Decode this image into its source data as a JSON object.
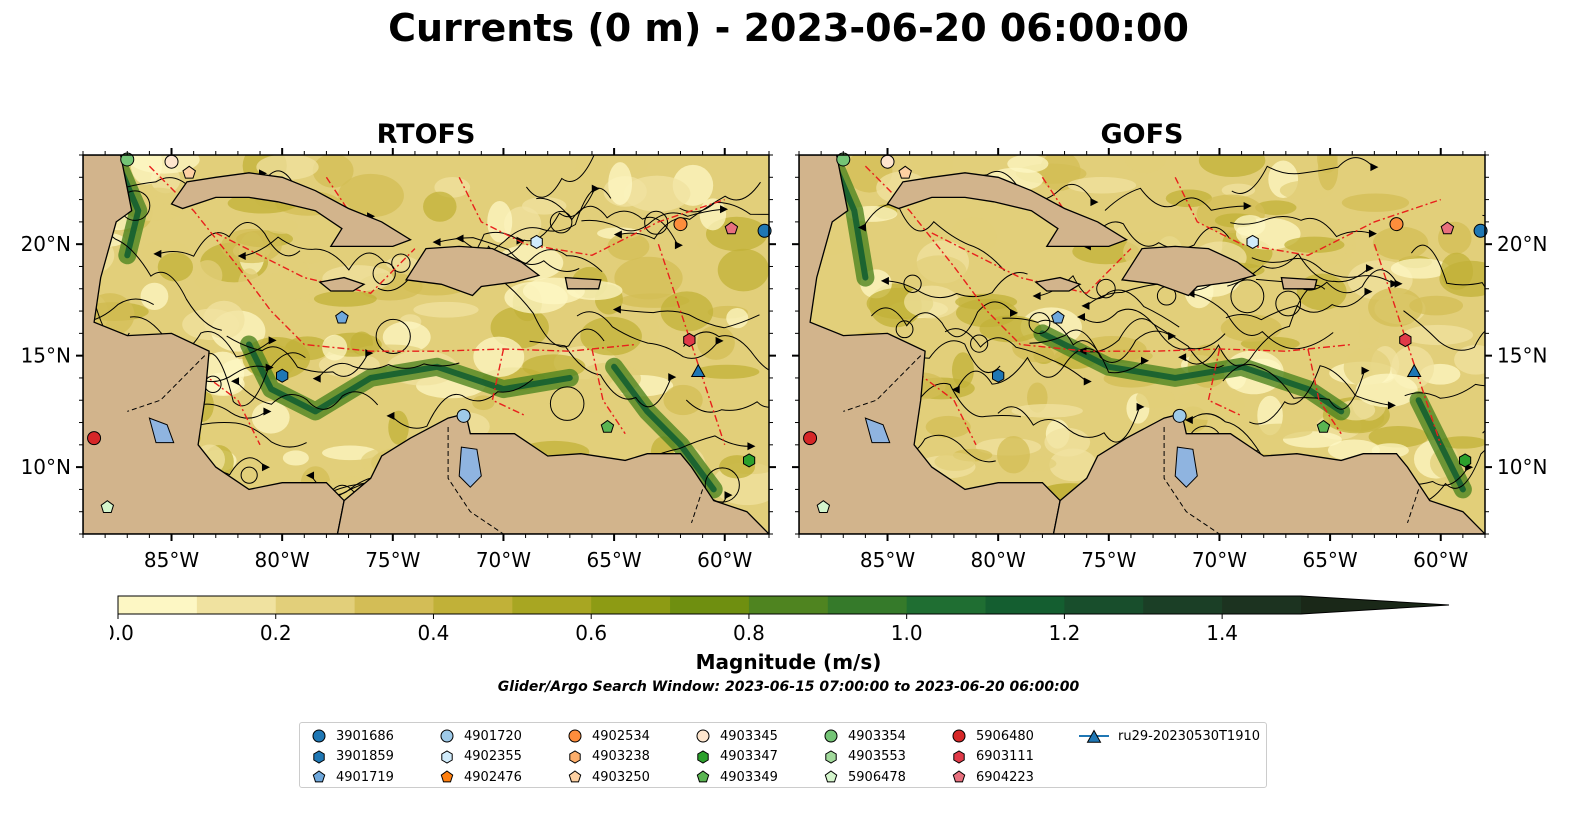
{
  "figure": {
    "title": "Currents (0 m) - 2023-06-20 06:00:00",
    "search_window": "Glider/Argo Search Window: 2023-06-15 07:00:00 to 2023-06-20 06:00:00"
  },
  "colors": {
    "land": "#d2b48c",
    "lakes": "#8fb4e0",
    "eez_lines": "#e8201c",
    "streamlines": "#000000"
  },
  "chart_data": [
    {
      "type": "heatmap",
      "title": "RTOFS",
      "variable": "surface current magnitude with streamlines",
      "xlim": [
        -89,
        -58
      ],
      "ylim": [
        7,
        24
      ],
      "x_ticks": [
        -85,
        -80,
        -75,
        -70,
        -65,
        -60
      ],
      "x_tick_labels": [
        "85°W",
        "80°W",
        "75°W",
        "70°W",
        "65°W",
        "60°W"
      ],
      "y_ticks": [
        10,
        15,
        20
      ],
      "y_tick_labels": [
        "10°N",
        "15°N",
        "20°N"
      ],
      "y_label_side": "left",
      "platforms": [
        {
          "id": "3901686",
          "lon": -58.2,
          "lat": 20.6
        },
        {
          "id": "4901720",
          "lon": -71.8,
          "lat": 12.3
        },
        {
          "id": "3901859",
          "lon": -80.0,
          "lat": 14.1
        },
        {
          "id": "4902355",
          "lon": -68.5,
          "lat": 20.1
        },
        {
          "id": "4902534",
          "lon": -62.0,
          "lat": 20.9
        },
        {
          "id": "4901719",
          "lon": -77.3,
          "lat": 16.7
        },
        {
          "id": "4903345",
          "lon": -85.0,
          "lat": 23.7
        },
        {
          "id": "4903250",
          "lon": -84.2,
          "lat": 23.2
        },
        {
          "id": "4903354",
          "lon": -87.0,
          "lat": 23.8
        },
        {
          "id": "4903349",
          "lon": -65.3,
          "lat": 11.8
        },
        {
          "id": "4903347",
          "lon": -58.9,
          "lat": 10.3
        },
        {
          "id": "5906478",
          "lon": -87.9,
          "lat": 8.2
        },
        {
          "id": "5906480",
          "lon": -88.5,
          "lat": 11.3
        },
        {
          "id": "6903111",
          "lon": -61.6,
          "lat": 15.7
        },
        {
          "id": "6904223",
          "lon": -59.7,
          "lat": 20.7
        },
        {
          "id": "ru29-20230530T1910",
          "lon": -61.2,
          "lat": 14.3
        }
      ]
    },
    {
      "type": "heatmap",
      "title": "GOFS",
      "variable": "surface current magnitude with streamlines",
      "xlim": [
        -89,
        -58
      ],
      "ylim": [
        7,
        24
      ],
      "x_ticks": [
        -85,
        -80,
        -75,
        -70,
        -65,
        -60
      ],
      "x_tick_labels": [
        "85°W",
        "80°W",
        "75°W",
        "70°W",
        "65°W",
        "60°W"
      ],
      "y_ticks": [
        10,
        15,
        20
      ],
      "y_tick_labels": [
        "10°N",
        "15°N",
        "20°N"
      ],
      "y_label_side": "right",
      "platforms": [
        {
          "id": "3901686",
          "lon": -58.2,
          "lat": 20.6
        },
        {
          "id": "4901720",
          "lon": -71.8,
          "lat": 12.3
        },
        {
          "id": "3901859",
          "lon": -80.0,
          "lat": 14.1
        },
        {
          "id": "4902355",
          "lon": -68.5,
          "lat": 20.1
        },
        {
          "id": "4902534",
          "lon": -62.0,
          "lat": 20.9
        },
        {
          "id": "4901719",
          "lon": -77.3,
          "lat": 16.7
        },
        {
          "id": "4903345",
          "lon": -85.0,
          "lat": 23.7
        },
        {
          "id": "4903250",
          "lon": -84.2,
          "lat": 23.2
        },
        {
          "id": "4903354",
          "lon": -87.0,
          "lat": 23.8
        },
        {
          "id": "4903349",
          "lon": -65.3,
          "lat": 11.8
        },
        {
          "id": "4903347",
          "lon": -58.9,
          "lat": 10.3
        },
        {
          "id": "5906478",
          "lon": -87.9,
          "lat": 8.2
        },
        {
          "id": "5906480",
          "lon": -88.5,
          "lat": 11.3
        },
        {
          "id": "6903111",
          "lon": -61.6,
          "lat": 15.7
        },
        {
          "id": "6904223",
          "lon": -59.7,
          "lat": 20.7
        },
        {
          "id": "ru29-20230530T1910",
          "lon": -61.2,
          "lat": 14.3
        }
      ]
    }
  ],
  "colorbar": {
    "label": "Magnitude (m/s)",
    "min": 0.0,
    "max": 1.5,
    "extend": "max",
    "ticks": [
      0.0,
      0.2,
      0.4,
      0.6,
      0.8,
      1.0,
      1.2,
      1.4
    ],
    "tick_labels": [
      "0.0",
      "0.2",
      "0.4",
      "0.6",
      "0.8",
      "1.0",
      "1.2",
      "1.4"
    ],
    "bin_edges": [
      0.0,
      0.1,
      0.2,
      0.3,
      0.4,
      0.5,
      0.6,
      0.7,
      0.8,
      0.9,
      1.0,
      1.1,
      1.2,
      1.3,
      1.4,
      1.5
    ],
    "bin_colors": [
      "#fdf7c4",
      "#f0e2a0",
      "#e2cf7a",
      "#d3bd56",
      "#c1b138",
      "#a8a622",
      "#8d9b14",
      "#6f8f10",
      "#4f8420",
      "#357a2a",
      "#1f6e32",
      "#145e30",
      "#184e2c",
      "#1b3f26",
      "#1c3320"
    ],
    "extend_color": "#1a2818"
  },
  "legend": {
    "items": [
      {
        "label": "3901686",
        "color": "#1f77b4",
        "marker": "circle"
      },
      {
        "label": "3901859",
        "color": "#1f77b4",
        "marker": "hexagon"
      },
      {
        "label": "4901719",
        "color": "#6fa8dc",
        "marker": "pentagon"
      },
      {
        "label": "4901720",
        "color": "#9ecae9",
        "marker": "circle"
      },
      {
        "label": "4902355",
        "color": "#d0ebfb",
        "marker": "hexagon"
      },
      {
        "label": "4902476",
        "color": "#ff7f0e",
        "marker": "pentagon"
      },
      {
        "label": "4902534",
        "color": "#fd8d3c",
        "marker": "circle"
      },
      {
        "label": "4903238",
        "color": "#fdae6b",
        "marker": "hexagon"
      },
      {
        "label": "4903250",
        "color": "#fdd0a2",
        "marker": "pentagon"
      },
      {
        "label": "4903345",
        "color": "#fee6ce",
        "marker": "circle"
      },
      {
        "label": "4903347",
        "color": "#2ca02c",
        "marker": "hexagon"
      },
      {
        "label": "4903349",
        "color": "#5ab552",
        "marker": "pentagon"
      },
      {
        "label": "4903354",
        "color": "#74c476",
        "marker": "circle"
      },
      {
        "label": "4903553",
        "color": "#a1d99b",
        "marker": "hexagon"
      },
      {
        "label": "5906478",
        "color": "#d4f5cc",
        "marker": "pentagon"
      },
      {
        "label": "5906480",
        "color": "#d62728",
        "marker": "circle"
      },
      {
        "label": "6903111",
        "color": "#e03a48",
        "marker": "hexagon"
      },
      {
        "label": "6904223",
        "color": "#e8707e",
        "marker": "pentagon"
      },
      {
        "label": "ru29-20230530T1910",
        "color": "#1f77b4",
        "marker": "triangle-line"
      }
    ]
  }
}
